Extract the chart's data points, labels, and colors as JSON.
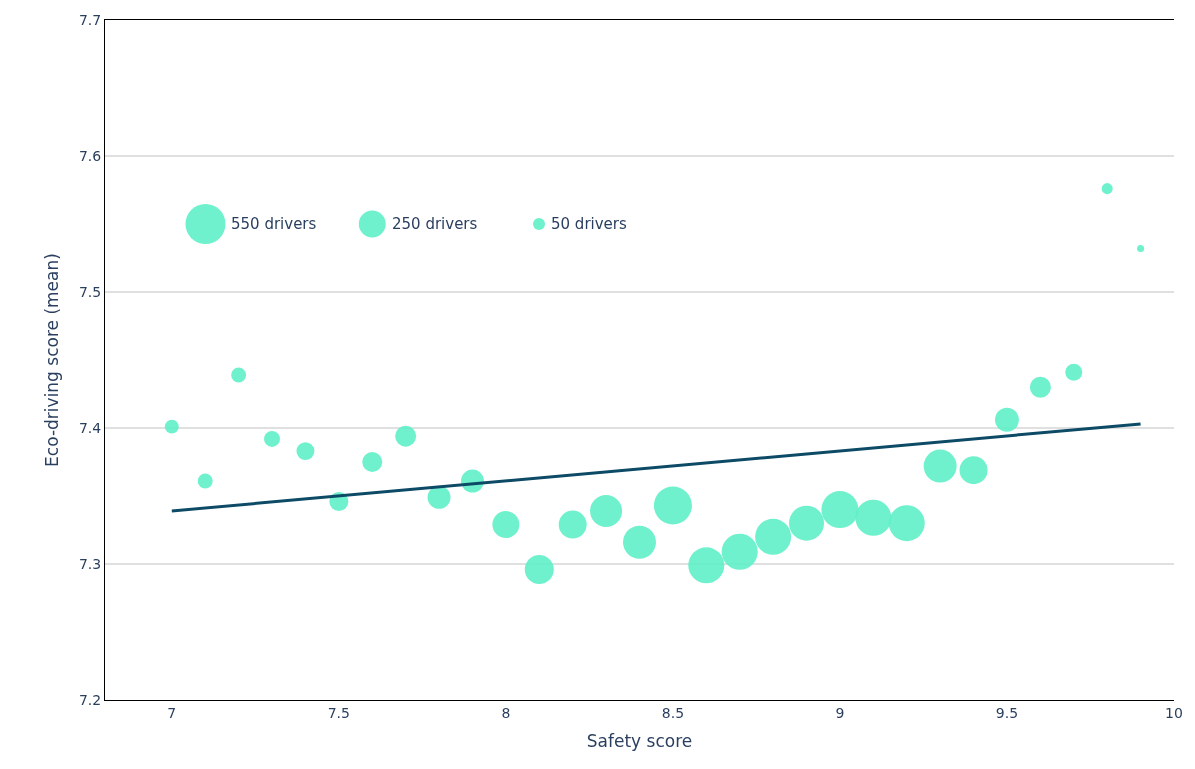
{
  "chart_data": {
    "type": "bubble",
    "xlabel": "Safety score",
    "ylabel": "Eco-driving score (mean)",
    "xlim": [
      6.8,
      10
    ],
    "xticks": [
      7,
      7.5,
      8,
      8.5,
      9,
      9.5,
      10
    ],
    "ylim": [
      7.2,
      7.7
    ],
    "yticks": [
      7.2,
      7.3,
      7.4,
      7.5,
      7.6,
      7.7
    ],
    "grid": "y",
    "size_legend": [
      {
        "value": 550,
        "label": "550 drivers"
      },
      {
        "value": 250,
        "label": "250 drivers"
      },
      {
        "value": 50,
        "label": "50 drivers"
      }
    ],
    "series": [
      {
        "color": "#5ef0c6",
        "x": [
          7.0,
          7.1,
          7.2,
          7.3,
          7.4,
          7.5,
          7.6,
          7.7,
          7.8,
          7.9,
          8.0,
          8.1,
          8.2,
          8.3,
          8.4,
          8.5,
          8.6,
          8.7,
          8.8,
          8.9,
          9.0,
          9.1,
          9.2,
          9.3,
          9.4,
          9.5,
          9.6,
          9.7,
          9.8,
          9.9
        ],
        "values": [
          7.401,
          7.361,
          7.439,
          7.392,
          7.383,
          7.346,
          7.375,
          7.394,
          7.349,
          7.361,
          7.329,
          7.296,
          7.329,
          7.339,
          7.316,
          7.343,
          7.299,
          7.309,
          7.32,
          7.33,
          7.34,
          7.334,
          7.33,
          7.372,
          7.369,
          7.406,
          7.43,
          7.441,
          7.576,
          7.532
        ],
        "sizes": [
          67,
          77,
          77,
          88,
          111,
          124,
          138,
          152,
          182,
          182,
          251,
          289,
          270,
          352,
          374,
          496,
          446,
          446,
          446,
          421,
          471,
          446,
          446,
          374,
          270,
          198,
          152,
          99,
          42,
          17
        ]
      },
      {
        "type": "line",
        "color": "#0d4a66",
        "x": [
          7.0,
          9.9
        ],
        "values": [
          7.339,
          7.403
        ]
      }
    ]
  }
}
